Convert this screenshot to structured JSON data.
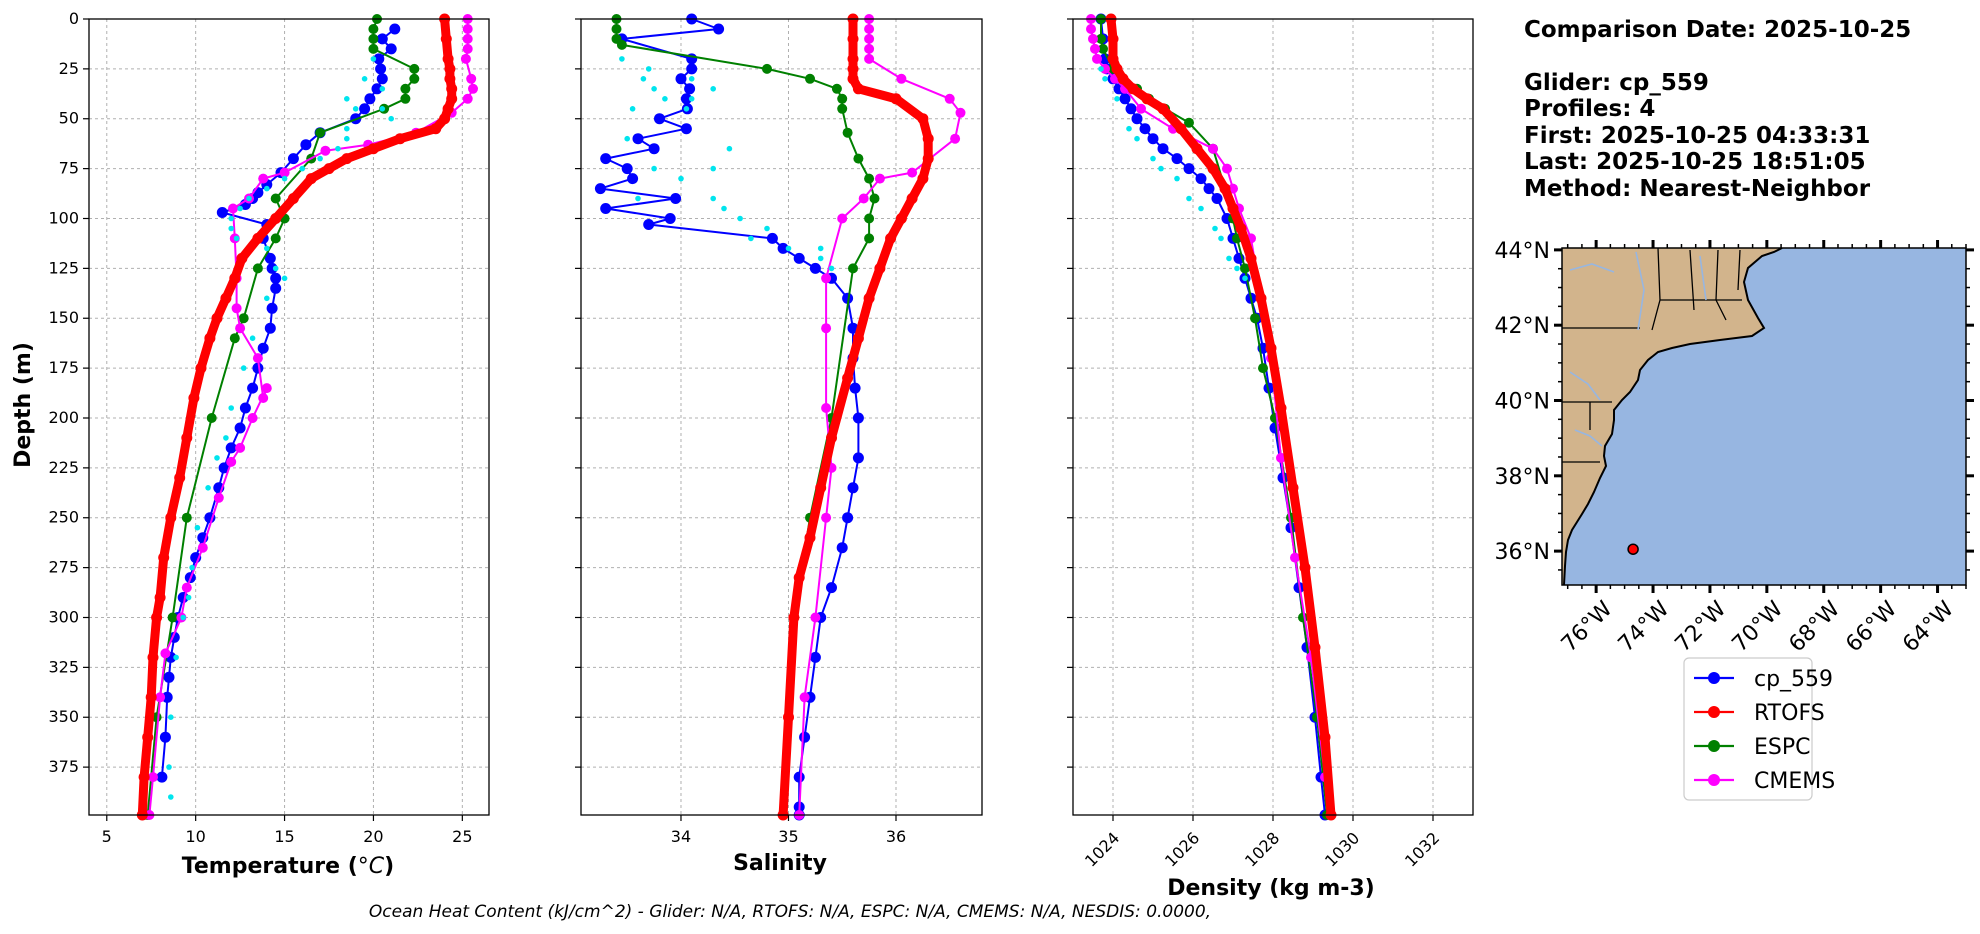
{
  "chart_data": [
    {
      "type": "line",
      "xlabel": "Temperature (°C)",
      "ylabel": "Depth (m)",
      "xlim": [
        4,
        26.5
      ],
      "ylim": [
        399,
        0
      ],
      "xticks": [
        5,
        10,
        15,
        20,
        25
      ],
      "yticks": [
        0,
        25,
        50,
        75,
        100,
        125,
        150,
        175,
        200,
        225,
        250,
        275,
        300,
        325,
        350,
        375
      ],
      "grid": true,
      "series": [
        {
          "name": "cp_559",
          "color": "#0000ff",
          "x": [
            21.2,
            20.5,
            21,
            20.3,
            20.4,
            20.5,
            20.2,
            19.8,
            19.5,
            19,
            17,
            16.2,
            15.5,
            14.8,
            14,
            13.5,
            13.2,
            12.8,
            11.5,
            14,
            13.8,
            14.2,
            14.3,
            14.5,
            14.5,
            14.3,
            14.2,
            13.8,
            13.5,
            13.2,
            12.8,
            12.5,
            12,
            11.6,
            11.3,
            10.8,
            10.4,
            10,
            9.7,
            9.3,
            9,
            8.8,
            8.6,
            8.5,
            8.4,
            8.3,
            8.1
          ],
          "y": [
            5,
            10,
            15,
            20,
            25,
            30,
            35,
            40,
            45,
            50,
            57,
            63,
            70,
            77,
            83,
            87,
            90,
            93,
            97,
            103,
            110,
            120,
            125,
            130,
            135,
            145,
            155,
            165,
            175,
            185,
            195,
            205,
            215,
            225,
            235,
            250,
            260,
            270,
            280,
            290,
            300,
            310,
            320,
            330,
            340,
            360,
            380
          ]
        },
        {
          "name": "RTOFS",
          "color": "#ff0000",
          "x": [
            24,
            24.1,
            24.2,
            24.3,
            24.3,
            24.4,
            24.4,
            24.2,
            24,
            23.5,
            21.5,
            20,
            18.5,
            17.5,
            16.5,
            15.5,
            14.5,
            13.5,
            12.6,
            12.2,
            11.7,
            11.2,
            10.8,
            10.3,
            9.9,
            9.5,
            9.1,
            8.6,
            8.2,
            8,
            7.8,
            7.6,
            7.5,
            7.3,
            7.1,
            7
          ],
          "y": [
            0,
            10,
            20,
            25,
            30,
            35,
            40,
            45,
            50,
            55,
            60,
            65,
            70,
            75,
            80,
            90,
            100,
            110,
            120,
            130,
            140,
            150,
            160,
            175,
            190,
            210,
            230,
            250,
            270,
            290,
            300,
            320,
            340,
            360,
            380,
            399
          ]
        },
        {
          "name": "ESPC",
          "color": "#008000",
          "x": [
            20.2,
            20,
            20,
            20,
            22.3,
            22.3,
            21.8,
            21.8,
            20.6,
            17,
            16.5,
            14.5,
            15,
            14.5,
            13.5,
            12.7,
            12.2,
            10.9,
            9.5,
            8.7,
            7.8,
            7.3,
            7.1
          ],
          "y": [
            0,
            5,
            10,
            15,
            25,
            30,
            35,
            40,
            45,
            57,
            70,
            90,
            100,
            110,
            125,
            150,
            160,
            200,
            250,
            300,
            350,
            399,
            399
          ]
        },
        {
          "name": "CMEMS",
          "color": "#ff00ff",
          "x": [
            25.3,
            25.3,
            25.3,
            25.3,
            25.2,
            25.5,
            25.6,
            25.3,
            24.4,
            22.4,
            19.7,
            17.3,
            15,
            13.8,
            13,
            12.1,
            12.2,
            12.3,
            12.3,
            12.5,
            13.5,
            13.8,
            14,
            13.2,
            12.5,
            12,
            11.3,
            10.4,
            9.5,
            9.2,
            8.3,
            8,
            7.6,
            7.4
          ],
          "y": [
            0,
            5,
            10,
            15,
            20,
            30,
            35,
            40,
            47,
            57,
            63,
            66,
            77,
            80,
            90,
            95,
            110,
            130,
            145,
            155,
            170,
            190,
            185,
            200,
            215,
            222,
            240,
            265,
            285,
            300,
            318,
            340,
            380,
            399
          ]
        },
        {
          "name": "",
          "color": "#00e5ee",
          "x": [
            20,
            19.5,
            20.5,
            18.5,
            19,
            20.5,
            18.5,
            21,
            18.5,
            18,
            17,
            16,
            15,
            14,
            13,
            12.5,
            12,
            12,
            12.3,
            14,
            14.5,
            15,
            14,
            13.2,
            12.7,
            12,
            11.7,
            11.2,
            10.7,
            10.1,
            9.8,
            9.6,
            9.3,
            8.9,
            8.6,
            8.5,
            8.6
          ],
          "y": [
            20,
            30,
            35,
            40,
            45,
            45,
            55,
            50,
            60,
            65,
            70,
            75,
            80,
            85,
            90,
            95,
            100,
            105,
            110,
            115,
            125,
            130,
            140,
            160,
            175,
            195,
            210,
            220,
            235,
            255,
            275,
            290,
            300,
            320,
            350,
            375,
            390
          ]
        }
      ]
    },
    {
      "type": "line",
      "xlabel": "Salinity",
      "xlim": [
        33.07,
        36.8
      ],
      "ylim": [
        399,
        0
      ],
      "xticks": [
        34,
        35,
        36
      ],
      "grid": true,
      "series": [
        {
          "name": "cp_559",
          "color": "#0000ff",
          "x": [
            34.1,
            34.35,
            33.45,
            34.1,
            34.1,
            34.0,
            34.08,
            34.05,
            34.06,
            33.8,
            34.05,
            33.6,
            33.75,
            33.3,
            33.5,
            33.55,
            33.25,
            33.95,
            33.3,
            33.9,
            33.7,
            34.85,
            34.95,
            35.1,
            35.25,
            35.4,
            35.55,
            35.6,
            35.6,
            35.62,
            35.65,
            35.65,
            35.6,
            35.55,
            35.5,
            35.4,
            35.3,
            35.25,
            35.2,
            35.15,
            35.1,
            35.1,
            35.1
          ],
          "y": [
            0,
            5,
            10,
            20,
            25,
            30,
            35,
            40,
            45,
            50,
            55,
            60,
            65,
            70,
            75,
            80,
            85,
            90,
            95,
            100,
            103,
            110,
            115,
            120,
            125,
            130,
            140,
            155,
            170,
            185,
            200,
            220,
            235,
            250,
            265,
            285,
            300,
            320,
            340,
            360,
            380,
            395,
            399
          ]
        },
        {
          "name": "RTOFS",
          "color": "#ff0000",
          "x": [
            35.6,
            35.6,
            35.6,
            35.6,
            35.6,
            35.65,
            36.0,
            36.25,
            36.3,
            36.3,
            36.25,
            36.15,
            36.05,
            35.95,
            35.85,
            35.75,
            35.65,
            35.55,
            35.4,
            35.3,
            35.2,
            35.1,
            35.05,
            35.0,
            34.95
          ],
          "y": [
            0,
            10,
            20,
            25,
            30,
            35,
            40,
            50,
            60,
            70,
            80,
            90,
            100,
            110,
            125,
            140,
            160,
            180,
            210,
            235,
            260,
            280,
            300,
            350,
            399
          ]
        },
        {
          "name": "ESPC",
          "color": "#008000",
          "x": [
            33.4,
            33.4,
            33.4,
            33.45,
            34.8,
            35.2,
            35.45,
            35.5,
            35.5,
            35.55,
            35.65,
            35.75,
            35.8,
            35.75,
            35.75,
            35.6,
            35.4,
            35.2,
            35.05,
            35.0,
            34.95
          ],
          "y": [
            0,
            5,
            10,
            13,
            25,
            30,
            35,
            40,
            45,
            57,
            70,
            80,
            90,
            100,
            110,
            125,
            200,
            250,
            300,
            350,
            399
          ]
        },
        {
          "name": "CMEMS",
          "color": "#ff00ff",
          "x": [
            35.75,
            35.75,
            35.75,
            35.75,
            35.75,
            36.05,
            36.5,
            36.6,
            36.55,
            36.15,
            35.85,
            35.7,
            35.5,
            35.35,
            35.35,
            35.35,
            35.4,
            35.35,
            35.25,
            35.15,
            35.1
          ],
          "y": [
            0,
            5,
            10,
            15,
            20,
            30,
            40,
            47,
            60,
            77,
            80,
            90,
            100,
            130,
            155,
            195,
            225,
            250,
            300,
            340,
            399
          ]
        },
        {
          "name": "",
          "color": "#00e5ee",
          "x": [
            33.45,
            33.7,
            33.65,
            34.1,
            33.75,
            34.3,
            33.85,
            34.1,
            33.55,
            34.05,
            33.5,
            34.45,
            33.75,
            34.3,
            34.0,
            33.6,
            34.3,
            34.4,
            34.55,
            34.8,
            34.65,
            35.0,
            35.3,
            35.3,
            35.4
          ],
          "y": [
            20,
            25,
            30,
            30,
            35,
            35,
            40,
            40,
            45,
            45,
            60,
            65,
            75,
            75,
            80,
            90,
            90,
            95,
            100,
            105,
            110,
            115,
            115,
            120,
            125
          ]
        }
      ]
    },
    {
      "type": "line",
      "xlabel": "Density (kg m-3)",
      "xlim": [
        1023.0,
        1033.0
      ],
      "ylim": [
        399,
        0
      ],
      "xticks": [
        1024,
        1026,
        1028,
        1030,
        1032
      ],
      "grid": true,
      "series": [
        {
          "name": "cp_559",
          "color": "#0000ff",
          "x": [
            1023.7,
            1023.75,
            1023.8,
            1023.85,
            1024.0,
            1024.15,
            1024.3,
            1024.45,
            1024.6,
            1024.8,
            1025.0,
            1025.25,
            1025.6,
            1025.9,
            1026.2,
            1026.4,
            1026.6,
            1026.85,
            1027.0,
            1027.15,
            1027.3,
            1027.45,
            1027.6,
            1027.75,
            1027.9,
            1028.05,
            1028.25,
            1028.45,
            1028.65,
            1028.85,
            1029.05,
            1029.2,
            1029.3
          ],
          "y": [
            0,
            10,
            20,
            25,
            30,
            35,
            40,
            45,
            50,
            55,
            60,
            65,
            70,
            75,
            80,
            85,
            90,
            100,
            110,
            120,
            130,
            140,
            150,
            165,
            185,
            205,
            230,
            255,
            285,
            315,
            350,
            380,
            399
          ]
        },
        {
          "name": "RTOFS",
          "color": "#ff0000",
          "x": [
            1023.95,
            1024.0,
            1024.0,
            1024.1,
            1024.25,
            1024.5,
            1024.85,
            1025.25,
            1025.7,
            1026.1,
            1026.5,
            1026.8,
            1027.0,
            1027.2,
            1027.45,
            1027.7,
            1027.95,
            1028.2,
            1028.5,
            1028.8,
            1029.05,
            1029.3,
            1029.45
          ],
          "y": [
            0,
            10,
            20,
            25,
            30,
            35,
            40,
            45,
            55,
            65,
            75,
            85,
            95,
            105,
            120,
            140,
            165,
            195,
            235,
            275,
            315,
            360,
            399
          ]
        },
        {
          "name": "ESPC",
          "color": "#008000",
          "x": [
            1023.7,
            1023.7,
            1023.75,
            1024.0,
            1024.3,
            1024.6,
            1024.9,
            1025.3,
            1025.9,
            1026.5,
            1026.8,
            1027.0,
            1027.1,
            1027.3,
            1027.55,
            1027.75,
            1028.05,
            1028.45,
            1028.75,
            1029.1,
            1029.35
          ],
          "y": [
            0,
            10,
            15,
            25,
            32,
            35,
            40,
            45,
            52,
            65,
            85,
            100,
            110,
            125,
            150,
            175,
            200,
            250,
            300,
            350,
            399
          ]
        },
        {
          "name": "CMEMS",
          "color": "#ff00ff",
          "x": [
            1023.45,
            1023.45,
            1023.5,
            1023.55,
            1023.6,
            1023.8,
            1024.05,
            1024.3,
            1024.7,
            1025.5,
            1026.5,
            1026.85,
            1027.0,
            1027.15,
            1027.45,
            1027.7,
            1027.95,
            1028.2,
            1028.55,
            1028.95,
            1029.3
          ],
          "y": [
            0,
            5,
            10,
            15,
            20,
            25,
            30,
            35,
            45,
            55,
            65,
            75,
            85,
            95,
            110,
            140,
            170,
            220,
            270,
            320,
            380
          ]
        },
        {
          "name": "",
          "color": "#00e5ee",
          "x": [
            1023.7,
            1023.8,
            1024.1,
            1024.4,
            1024.6,
            1025.0,
            1025.2,
            1025.6,
            1025.9,
            1026.2,
            1026.55,
            1026.7,
            1026.9,
            1027.1,
            1027.3
          ],
          "y": [
            25,
            30,
            40,
            55,
            60,
            70,
            75,
            80,
            90,
            95,
            105,
            110,
            120,
            125,
            130
          ]
        }
      ]
    }
  ],
  "info_panel": {
    "comparison_date": "Comparison Date: 2025-10-25",
    "glider": "Glider: cp_559",
    "profiles": "Profiles: 4",
    "first": "First: 2025-10-25 04:33:31",
    "last": "Last: 2025-10-25 18:51:05",
    "method": "Method: Nearest-Neighbor"
  },
  "map": {
    "lat_ticks": [
      "44°N",
      "42°N",
      "40°N",
      "38°N",
      "36°N"
    ],
    "lon_ticks": [
      "76°W",
      "74°W",
      "72°W",
      "70°W",
      "68°W",
      "66°W",
      "64°W"
    ],
    "land_color": "#d2b48c",
    "ocean_color": "#97b6e1",
    "glider_position": {
      "lat": 36.05,
      "lon": -74.7
    }
  },
  "legend": {
    "entries": [
      {
        "label": "cp_559",
        "color": "#0000ff"
      },
      {
        "label": "RTOFS",
        "color": "#ff0000"
      },
      {
        "label": "ESPC",
        "color": "#008000"
      },
      {
        "label": "CMEMS",
        "color": "#ff00ff"
      }
    ]
  },
  "footer": {
    "text": "Ocean Heat Content (kJ/cm^2) - Glider: N/A,  RTOFS: N/A,  ESPC: N/A,  CMEMS: N/A,  NESDIS: 0.0000,"
  },
  "labels": {
    "ylabel": "Depth (m)",
    "xlabel_temp": "Temperature (",
    "xlabel_temp_unit": "°C",
    "xlabel_temp_close": ")",
    "xlabel_sal": "Salinity",
    "xlabel_dens": "Density (kg m-3)"
  }
}
